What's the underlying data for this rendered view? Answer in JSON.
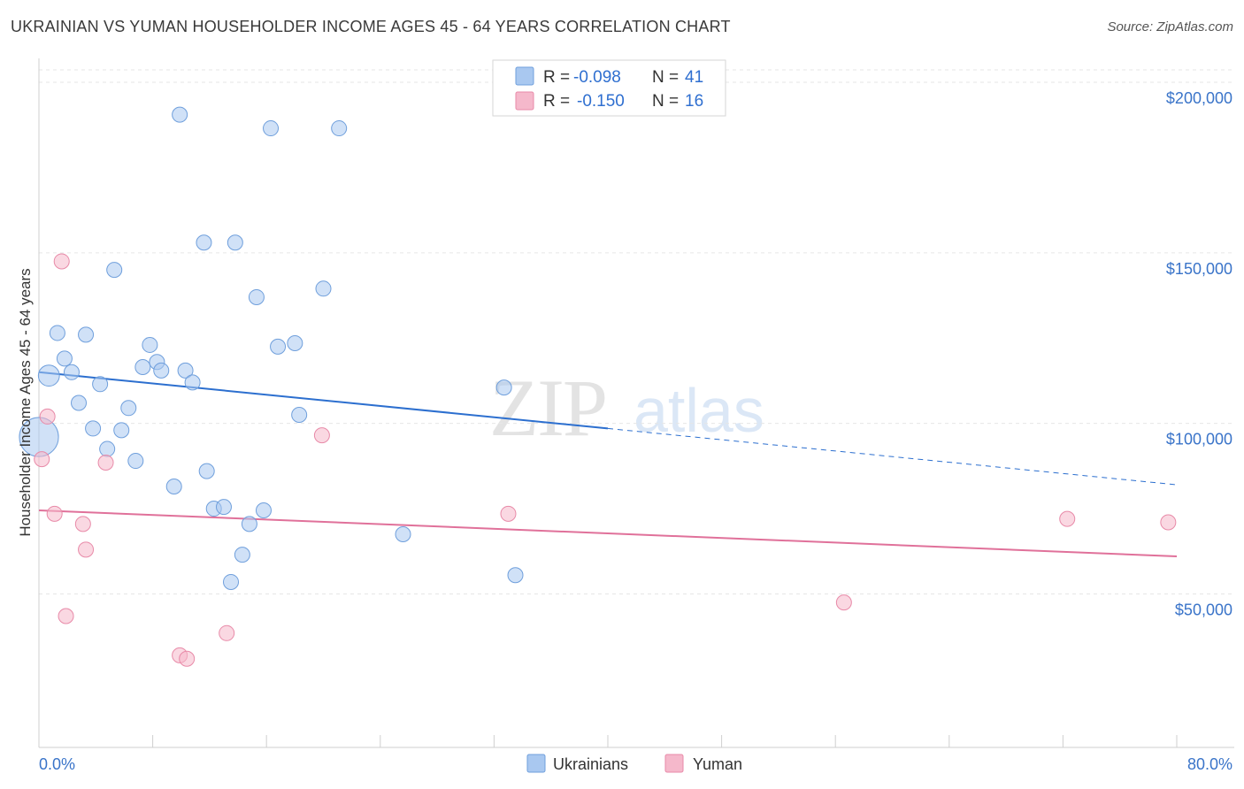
{
  "title": "UKRAINIAN VS YUMAN HOUSEHOLDER INCOME AGES 45 - 64 YEARS CORRELATION CHART",
  "source": "Source: ZipAtlas.com",
  "watermark": {
    "zip": "ZIP",
    "atlas": "atlas"
  },
  "legend": {
    "rows": [
      {
        "r_label": "R =",
        "r_value": "-0.098",
        "n_label": "N =",
        "n_value": "41",
        "color": "#a9c8f0"
      },
      {
        "r_label": "R =",
        "r_value": "-0.150",
        "n_label": "N =",
        "n_value": "16",
        "color": "#f5b8cb"
      }
    ]
  },
  "bottom_legend": [
    {
      "label": "Ukrainians",
      "color": "#a9c8f0"
    },
    {
      "label": "Yuman",
      "color": "#f5b8cb"
    }
  ],
  "chart_data": {
    "type": "scatter",
    "title": "UKRAINIAN VS YUMAN HOUSEHOLDER INCOME AGES 45 - 64 YEARS CORRELATION CHART",
    "xlabel": "",
    "ylabel": "Householder Income Ages 45 - 64 years",
    "xlim": [
      0,
      80
    ],
    "ylim": [
      5000,
      207000
    ],
    "x_tick_labels": [
      "0.0%",
      "80.0%"
    ],
    "y_ticks": [
      50000,
      100000,
      150000,
      200000
    ],
    "y_tick_labels": [
      "$50,000",
      "$100,000",
      "$150,000",
      "$200,000"
    ],
    "grid": true,
    "legend_position": "top-center",
    "series": [
      {
        "name": "Ukrainians",
        "color": "#a9c8f0",
        "stroke": "#6f9fdc",
        "trend_color": "#2c6fcf",
        "trend": {
          "x0": 0,
          "y0": 115000,
          "x1": 40,
          "y1": 98500,
          "dash_to_x": 80,
          "dash_to_y": 82000
        },
        "points": [
          [
            0.7,
            114000,
            1.4
          ],
          [
            0.0,
            96000,
            2.6
          ],
          [
            1.3,
            126500,
            1
          ],
          [
            1.8,
            119000,
            1
          ],
          [
            2.3,
            115000,
            1
          ],
          [
            2.8,
            106000,
            1
          ],
          [
            3.3,
            126000,
            1
          ],
          [
            3.8,
            98500,
            1
          ],
          [
            4.3,
            111500,
            1
          ],
          [
            4.8,
            92500,
            1
          ],
          [
            5.3,
            145000,
            1
          ],
          [
            5.8,
            98000,
            1
          ],
          [
            6.3,
            104500,
            1
          ],
          [
            6.8,
            89000,
            1
          ],
          [
            7.3,
            116500,
            1
          ],
          [
            7.8,
            123000,
            1
          ],
          [
            8.3,
            118000,
            1
          ],
          [
            8.6,
            115500,
            1
          ],
          [
            9.5,
            81500,
            1
          ],
          [
            9.9,
            190500,
            1
          ],
          [
            10.3,
            115500,
            1
          ],
          [
            10.8,
            112000,
            1
          ],
          [
            11.6,
            153000,
            1
          ],
          [
            11.8,
            86000,
            1
          ],
          [
            12.3,
            75000,
            1
          ],
          [
            13.0,
            75500,
            1
          ],
          [
            13.5,
            53500,
            1
          ],
          [
            13.8,
            153000,
            1
          ],
          [
            14.3,
            61500,
            1
          ],
          [
            14.8,
            70500,
            1
          ],
          [
            15.3,
            137000,
            1
          ],
          [
            15.8,
            74500,
            1
          ],
          [
            16.3,
            186500,
            1
          ],
          [
            16.8,
            122500,
            1
          ],
          [
            18.0,
            123500,
            1
          ],
          [
            18.3,
            102500,
            1
          ],
          [
            20.0,
            139500,
            1
          ],
          [
            21.1,
            186500,
            1
          ],
          [
            25.6,
            67500,
            1
          ],
          [
            32.7,
            110500,
            1
          ],
          [
            33.5,
            55500,
            1
          ]
        ]
      },
      {
        "name": "Yuman",
        "color": "#f5b8cb",
        "stroke": "#e88aa8",
        "trend_color": "#e0719a",
        "trend": {
          "x0": 0,
          "y0": 74500,
          "x1": 80,
          "y1": 61000
        },
        "points": [
          [
            0.2,
            89500,
            1
          ],
          [
            0.6,
            102000,
            1
          ],
          [
            1.1,
            73500,
            1
          ],
          [
            1.6,
            147500,
            1
          ],
          [
            1.9,
            43500,
            1
          ],
          [
            3.1,
            70500,
            1
          ],
          [
            3.3,
            63000,
            1
          ],
          [
            4.7,
            88500,
            1
          ],
          [
            9.9,
            32000,
            1
          ],
          [
            10.4,
            31000,
            1
          ],
          [
            13.2,
            38500,
            1
          ],
          [
            19.9,
            96500,
            1
          ],
          [
            33.0,
            73500,
            1
          ],
          [
            56.6,
            47500,
            1
          ],
          [
            72.3,
            72000,
            1
          ],
          [
            79.4,
            71000,
            1
          ]
        ]
      }
    ]
  }
}
